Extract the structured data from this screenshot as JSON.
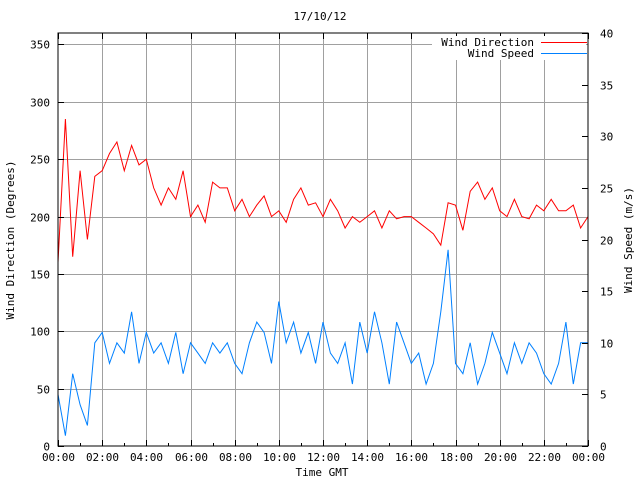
{
  "chart_data": {
    "type": "line",
    "title": "17/10/12",
    "xlabel": "Time GMT",
    "ylabel": "Wind Direction (Degrees)",
    "y2label": "Wind Speed (m/s)",
    "xlim_minutes": [
      0,
      1440
    ],
    "ylim": [
      0,
      360
    ],
    "y2lim": [
      0,
      40
    ],
    "grid": true,
    "legend_placement": "top-right",
    "x_ticks": [
      "00:00",
      "02:00",
      "04:00",
      "06:00",
      "08:00",
      "10:00",
      "12:00",
      "14:00",
      "16:00",
      "18:00",
      "20:00",
      "22:00",
      "00:00"
    ],
    "y_ticks": [
      0,
      50,
      100,
      150,
      200,
      250,
      300,
      350
    ],
    "y2_ticks": [
      0,
      5,
      10,
      15,
      20,
      25,
      30,
      35,
      40
    ],
    "x_minutes": [
      0,
      20,
      40,
      60,
      80,
      100,
      120,
      140,
      160,
      180,
      200,
      220,
      240,
      260,
      280,
      300,
      320,
      340,
      360,
      380,
      400,
      420,
      440,
      460,
      480,
      500,
      520,
      540,
      560,
      580,
      600,
      620,
      640,
      660,
      680,
      700,
      720,
      740,
      760,
      780,
      800,
      820,
      840,
      860,
      880,
      900,
      920,
      940,
      960,
      980,
      1000,
      1020,
      1040,
      1060,
      1080,
      1100,
      1120,
      1140,
      1160,
      1180,
      1200,
      1220,
      1240,
      1260,
      1280,
      1300,
      1320,
      1340,
      1360,
      1380,
      1400,
      1420,
      1440
    ],
    "series": [
      {
        "name": "Wind Direction",
        "axis": "y",
        "color": "#ff0000",
        "values": [
          160,
          285,
          165,
          240,
          180,
          235,
          240,
          255,
          265,
          240,
          262,
          245,
          250,
          225,
          210,
          225,
          215,
          240,
          200,
          210,
          195,
          230,
          225,
          225,
          205,
          215,
          200,
          210,
          218,
          200,
          205,
          195,
          215,
          225,
          210,
          212,
          200,
          215,
          205,
          190,
          200,
          195,
          200,
          205,
          190,
          205,
          198,
          200,
          200,
          195,
          190,
          185,
          175,
          212,
          210,
          188,
          222,
          230,
          215,
          225,
          205,
          200,
          215,
          200,
          198,
          210,
          205,
          215,
          205,
          205,
          210,
          190,
          200
        ]
      },
      {
        "name": "Wind Speed",
        "axis": "y2",
        "color": "#0080ff",
        "values": [
          5,
          1,
          7,
          4,
          2,
          10,
          11,
          8,
          10,
          9,
          13,
          8,
          11,
          9,
          10,
          8,
          11,
          7,
          10,
          9,
          8,
          10,
          9,
          10,
          8,
          7,
          10,
          12,
          11,
          8,
          14,
          10,
          12,
          9,
          11,
          8,
          12,
          9,
          8,
          10,
          6,
          12,
          9,
          13,
          10,
          6,
          12,
          10,
          8,
          9,
          6,
          8,
          13,
          19,
          8,
          7,
          10,
          6,
          8,
          11,
          9,
          7,
          10,
          8,
          10,
          9,
          7,
          6,
          8,
          12,
          6,
          10,
          10
        ]
      }
    ]
  }
}
